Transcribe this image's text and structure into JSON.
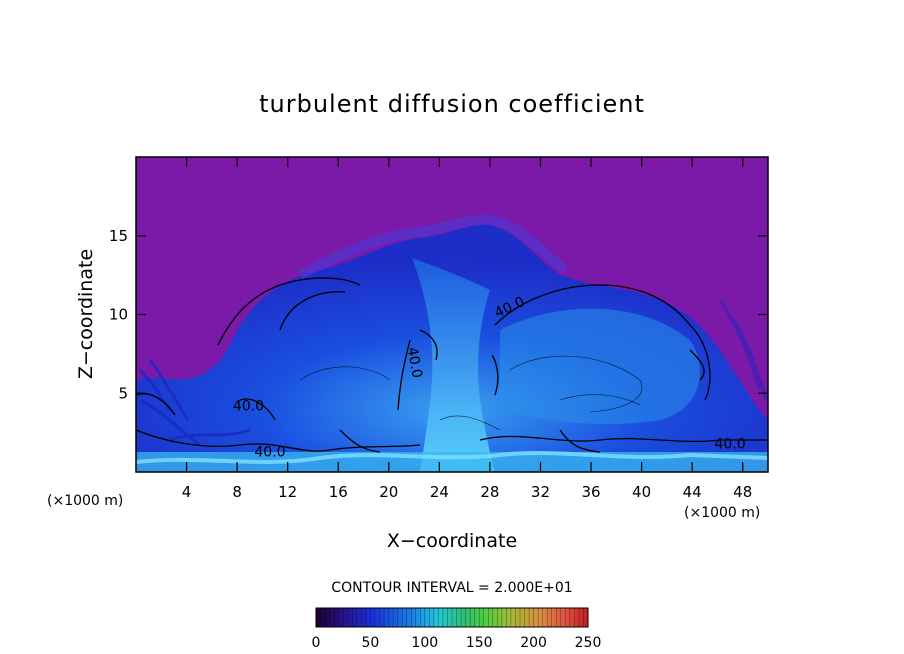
{
  "chart_data": {
    "type": "heatmap",
    "title": "turbulent diffusion coefficient",
    "xlabel": "X−coordinate",
    "ylabel": "Z−coordinate",
    "x_unit_left": "(×1000 m)",
    "x_unit_right": "(×1000 m)",
    "xlim": [
      0,
      50
    ],
    "ylim": [
      0,
      20
    ],
    "x_ticks": [
      4,
      8,
      12,
      16,
      20,
      24,
      28,
      32,
      36,
      40,
      44,
      48
    ],
    "x_tick_labels": [
      "4",
      "8",
      "12",
      "16",
      "20",
      "24",
      "28",
      "32",
      "36",
      "40",
      "44",
      "48"
    ],
    "y_ticks": [
      5,
      10,
      15
    ],
    "y_tick_labels": [
      "5",
      "10",
      "15"
    ],
    "contour_labels": [
      {
        "text": "40.0",
        "x": 29.7,
        "z": 10.2,
        "angle": -25
      },
      {
        "text": "40.0",
        "x": 21.7,
        "z": 6.9,
        "angle": 80
      },
      {
        "text": "40.0",
        "x": 8.9,
        "z": 3.9,
        "angle": 0
      },
      {
        "text": "40.0",
        "x": 10.6,
        "z": 1.0,
        "angle": 0
      },
      {
        "text": "40.0",
        "x": 47.0,
        "z": 1.5,
        "angle": 0
      }
    ],
    "contour_interval_text": "CONTOUR INTERVAL = 2.000E+01",
    "colorbar": {
      "min": 0,
      "max": 250,
      "ticks": [
        0,
        50,
        100,
        150,
        200,
        250
      ],
      "tick_labels": [
        "0",
        "50",
        "100",
        "150",
        "200",
        "250"
      ]
    },
    "colors": {
      "background_field": "#7b1aa8",
      "low": "#2a16b8",
      "mid": "#1a54e0",
      "high": "#3ab8f0",
      "peak": "#7ee0ff"
    }
  }
}
